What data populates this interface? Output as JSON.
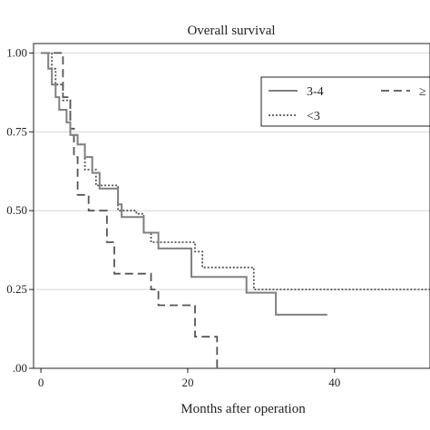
{
  "chart_data": {
    "type": "line",
    "title": "Overall survival",
    "xlabel": "Months after operation",
    "ylabel": "",
    "xlim": [
      -1,
      53
    ],
    "ylim": [
      0,
      1.03
    ],
    "x_ticks": [
      0,
      20,
      40
    ],
    "x_tick_labels": [
      "0",
      "20",
      "40"
    ],
    "y_ticks": [
      0,
      0.25,
      0.5,
      0.75,
      1.0
    ],
    "y_tick_labels": [
      ".00",
      "0.25",
      "0.50",
      "0.75",
      "1.00"
    ],
    "grid": "horizontal",
    "legend_placement": "top-right",
    "series": [
      {
        "name": "3-4",
        "style": "solid",
        "color": "#808080",
        "steps": [
          [
            0,
            1.0
          ],
          [
            1,
            0.95
          ],
          [
            1.5,
            0.9
          ],
          [
            2,
            0.86
          ],
          [
            2.5,
            0.82
          ],
          [
            3.5,
            0.78
          ],
          [
            4,
            0.74
          ],
          [
            5,
            0.71
          ],
          [
            6,
            0.67
          ],
          [
            7,
            0.62
          ],
          [
            8,
            0.57
          ],
          [
            10.5,
            0.52
          ],
          [
            11,
            0.48
          ],
          [
            14,
            0.43
          ],
          [
            16,
            0.38
          ],
          [
            20.5,
            0.29
          ],
          [
            28,
            0.24
          ],
          [
            32,
            0.17
          ],
          [
            39,
            0.17
          ]
        ]
      },
      {
        "name": "<3",
        "style": "dotted",
        "color": "#555555",
        "steps": [
          [
            0,
            1.0
          ],
          [
            1.5,
            0.95
          ],
          [
            2,
            0.9
          ],
          [
            3,
            0.85
          ],
          [
            4,
            0.74
          ],
          [
            5,
            0.71
          ],
          [
            6,
            0.63
          ],
          [
            7.5,
            0.58
          ],
          [
            10.5,
            0.5
          ],
          [
            13,
            0.49
          ],
          [
            14,
            0.43
          ],
          [
            15,
            0.4
          ],
          [
            21,
            0.37
          ],
          [
            22,
            0.32
          ],
          [
            29,
            0.25
          ],
          [
            53,
            0.25
          ]
        ]
      },
      {
        "name": "≥",
        "style": "dashed",
        "color": "#555555",
        "steps": [
          [
            0,
            1.0
          ],
          [
            2.5,
            1.0
          ],
          [
            3,
            0.86
          ],
          [
            4,
            0.76
          ],
          [
            4.5,
            0.67
          ],
          [
            5,
            0.55
          ],
          [
            6.5,
            0.5
          ],
          [
            9,
            0.4
          ],
          [
            10,
            0.3
          ],
          [
            15,
            0.25
          ],
          [
            16,
            0.2
          ],
          [
            21,
            0.1
          ],
          [
            24,
            0.0
          ]
        ]
      }
    ]
  }
}
